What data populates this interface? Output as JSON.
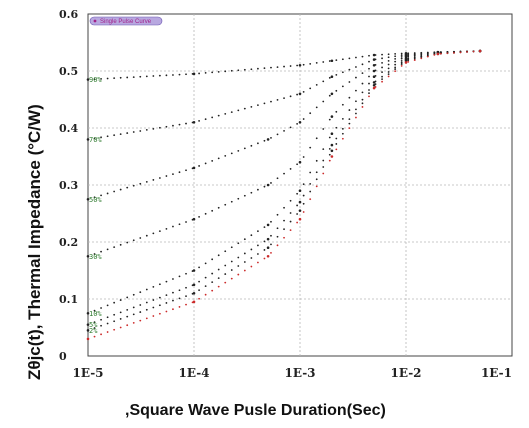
{
  "chart_data": {
    "type": "scatter",
    "title": "",
    "xlabel": ",Square Wave Pusle Duration(Sec)",
    "ylabel": "Zθjc(t), Thermal  Impedance (°C/W)",
    "xscale": "log",
    "xlim": [
      1e-05,
      0.1
    ],
    "ylim": [
      0,
      0.6
    ],
    "x_ticks": [
      "1E-5",
      "1E-4",
      "1E-3",
      "1E-2",
      "1E-1"
    ],
    "y_ticks": [
      "0",
      "0.1",
      "0.2",
      "0.3",
      "0.4",
      "0.5",
      "0.6"
    ],
    "grid": true,
    "legend": {
      "position": "top-left",
      "entries": [
        "Single Pulse Curve"
      ]
    },
    "series": [
      {
        "name": "90%",
        "label": "90%",
        "color": "#222222",
        "x": [
          1e-05,
          0.0001,
          0.001,
          0.002,
          0.005,
          0.01,
          0.02,
          0.05
        ],
        "values": [
          0.485,
          0.495,
          0.51,
          0.518,
          0.528,
          0.531,
          0.533,
          0.535
        ]
      },
      {
        "name": "70%",
        "label": "70%",
        "color": "#222222",
        "x": [
          1e-05,
          0.0001,
          0.001,
          0.002,
          0.005,
          0.01,
          0.02,
          0.05
        ],
        "values": [
          0.38,
          0.41,
          0.46,
          0.49,
          0.52,
          0.529,
          0.533,
          0.535
        ]
      },
      {
        "name": "50%",
        "label": "50%",
        "color": "#222222",
        "x": [
          1e-05,
          0.0001,
          0.0005,
          0.001,
          0.002,
          0.005,
          0.01,
          0.02,
          0.05
        ],
        "values": [
          0.275,
          0.33,
          0.38,
          0.41,
          0.46,
          0.51,
          0.527,
          0.533,
          0.535
        ]
      },
      {
        "name": "30%",
        "label": "30%",
        "color": "#222222",
        "x": [
          1e-05,
          0.0001,
          0.0005,
          0.001,
          0.002,
          0.005,
          0.01,
          0.02,
          0.05
        ],
        "values": [
          0.175,
          0.24,
          0.3,
          0.34,
          0.42,
          0.5,
          0.525,
          0.532,
          0.535
        ]
      },
      {
        "name": "10%",
        "label": "10%",
        "color": "#222222",
        "x": [
          1e-05,
          0.0001,
          0.0005,
          0.001,
          0.002,
          0.005,
          0.01,
          0.02,
          0.05
        ],
        "values": [
          0.075,
          0.15,
          0.23,
          0.29,
          0.39,
          0.49,
          0.522,
          0.531,
          0.535
        ]
      },
      {
        "name": "5%",
        "label": "5%",
        "color": "#222222",
        "x": [
          1e-05,
          0.0001,
          0.0005,
          0.001,
          0.002,
          0.005,
          0.01,
          0.02,
          0.05
        ],
        "values": [
          0.055,
          0.125,
          0.205,
          0.27,
          0.37,
          0.48,
          0.52,
          0.531,
          0.535
        ]
      },
      {
        "name": "2%",
        "label": "2%",
        "color": "#222222",
        "x": [
          1e-05,
          0.0001,
          0.0005,
          0.001,
          0.002,
          0.005,
          0.01,
          0.02,
          0.05
        ],
        "values": [
          0.045,
          0.11,
          0.19,
          0.255,
          0.36,
          0.475,
          0.518,
          0.53,
          0.535
        ]
      },
      {
        "name": "Single Pulse Curve",
        "label": "",
        "color": "#cc2a2a",
        "x": [
          1e-05,
          0.0001,
          0.0005,
          0.001,
          0.002,
          0.005,
          0.01,
          0.02,
          0.05
        ],
        "values": [
          0.03,
          0.095,
          0.175,
          0.24,
          0.35,
          0.47,
          0.515,
          0.53,
          0.535
        ]
      }
    ]
  }
}
